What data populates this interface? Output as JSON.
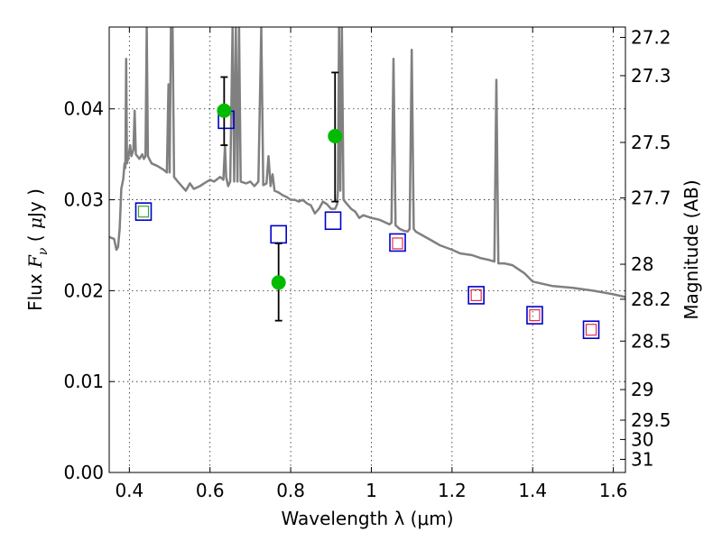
{
  "chart_data": {
    "type": "scatter",
    "xlabel": "Wavelength  λ (μm)",
    "ylabel_parts": [
      "Flux  ",
      "F",
      "ν",
      "  (  ",
      "μ",
      "Jy  )"
    ],
    "y2label": "Magnitude (AB)",
    "xlim": [
      0.35,
      1.63
    ],
    "ylim": [
      0.0,
      0.049
    ],
    "grid": true,
    "x_ticks": [
      {
        "value": 0.4,
        "label": "0.4"
      },
      {
        "value": 0.6,
        "label": "0.6"
      },
      {
        "value": 0.8,
        "label": "0.8"
      },
      {
        "value": 1.0,
        "label": "1"
      },
      {
        "value": 1.2,
        "label": "1.2"
      },
      {
        "value": 1.4,
        "label": "1.4"
      },
      {
        "value": 1.6,
        "label": "1.6"
      }
    ],
    "y_ticks": [
      {
        "value": 0.0,
        "label": "0.00"
      },
      {
        "value": 0.01,
        "label": "0.01"
      },
      {
        "value": 0.02,
        "label": "0.02"
      },
      {
        "value": 0.03,
        "label": "0.03"
      },
      {
        "value": 0.04,
        "label": "0.04"
      }
    ],
    "magnitude_ticks": [
      {
        "mag": 27.2,
        "label": "27.2"
      },
      {
        "mag": 27.3,
        "label": "27.3"
      },
      {
        "mag": 27.5,
        "label": "27.5"
      },
      {
        "mag": 27.7,
        "label": "27.7"
      },
      {
        "mag": 28.0,
        "label": "28"
      },
      {
        "mag": 28.2,
        "label": "28.2"
      },
      {
        "mag": 28.5,
        "label": "28.5"
      },
      {
        "mag": 29.0,
        "label": "29"
      },
      {
        "mag": 29.5,
        "label": "29.5"
      },
      {
        "mag": 30.0,
        "label": "30"
      },
      {
        "mag": 31.0,
        "label": "31"
      }
    ],
    "series": [
      {
        "kind": "line",
        "color": "#808080",
        "points": [
          [
            0.35,
            0.0259
          ],
          [
            0.362,
            0.0257
          ],
          [
            0.368,
            0.0245
          ],
          [
            0.372,
            0.0248
          ],
          [
            0.376,
            0.0268
          ],
          [
            0.38,
            0.0312
          ],
          [
            0.385,
            0.0323
          ],
          [
            0.388,
            0.034
          ],
          [
            0.39,
            0.0335
          ],
          [
            0.392,
            0.0455
          ],
          [
            0.394,
            0.034
          ],
          [
            0.398,
            0.0348
          ],
          [
            0.402,
            0.036
          ],
          [
            0.405,
            0.0348
          ],
          [
            0.41,
            0.0355
          ],
          [
            0.413,
            0.0398
          ],
          [
            0.416,
            0.035
          ],
          [
            0.425,
            0.0345
          ],
          [
            0.432,
            0.035
          ],
          [
            0.436,
            0.0345
          ],
          [
            0.44,
            0.0348
          ],
          [
            0.443,
            0.049
          ],
          [
            0.446,
            0.0348
          ],
          [
            0.455,
            0.034
          ],
          [
            0.47,
            0.0337
          ],
          [
            0.485,
            0.0333
          ],
          [
            0.493,
            0.033
          ],
          [
            0.497,
            0.0427
          ],
          [
            0.5,
            0.033
          ],
          [
            0.503,
            0.049
          ],
          [
            0.507,
            0.049
          ],
          [
            0.511,
            0.0325
          ],
          [
            0.52,
            0.032
          ],
          [
            0.53,
            0.0315
          ],
          [
            0.54,
            0.031
          ],
          [
            0.55,
            0.0318
          ],
          [
            0.56,
            0.0312
          ],
          [
            0.575,
            0.0315
          ],
          [
            0.585,
            0.0318
          ],
          [
            0.6,
            0.0322
          ],
          [
            0.61,
            0.032
          ],
          [
            0.625,
            0.0325
          ],
          [
            0.633,
            0.0322
          ],
          [
            0.637,
            0.036
          ],
          [
            0.64,
            0.0325
          ],
          [
            0.645,
            0.0315
          ],
          [
            0.65,
            0.032
          ],
          [
            0.656,
            0.049
          ],
          [
            0.66,
            0.032
          ],
          [
            0.664,
            0.049
          ],
          [
            0.668,
            0.032
          ],
          [
            0.672,
            0.049
          ],
          [
            0.676,
            0.032
          ],
          [
            0.69,
            0.0318
          ],
          [
            0.7,
            0.032
          ],
          [
            0.71,
            0.0315
          ],
          [
            0.72,
            0.032
          ],
          [
            0.727,
            0.049
          ],
          [
            0.732,
            0.0316
          ],
          [
            0.74,
            0.0318
          ],
          [
            0.745,
            0.0348
          ],
          [
            0.75,
            0.0315
          ],
          [
            0.755,
            0.0328
          ],
          [
            0.76,
            0.031
          ],
          [
            0.77,
            0.0308
          ],
          [
            0.78,
            0.0305
          ],
          [
            0.79,
            0.0303
          ],
          [
            0.8,
            0.03
          ],
          [
            0.81,
            0.03
          ],
          [
            0.82,
            0.0298
          ],
          [
            0.83,
            0.03
          ],
          [
            0.84,
            0.0296
          ],
          [
            0.85,
            0.0294
          ],
          [
            0.86,
            0.0285
          ],
          [
            0.87,
            0.029
          ],
          [
            0.88,
            0.0298
          ],
          [
            0.89,
            0.0295
          ],
          [
            0.9,
            0.029
          ],
          [
            0.91,
            0.029
          ],
          [
            0.915,
            0.0295
          ],
          [
            0.917,
            0.031
          ],
          [
            0.92,
            0.049
          ],
          [
            0.923,
            0.031
          ],
          [
            0.927,
            0.049
          ],
          [
            0.931,
            0.03
          ],
          [
            0.94,
            0.0295
          ],
          [
            0.95,
            0.029
          ],
          [
            0.96,
            0.0287
          ],
          [
            0.97,
            0.028
          ],
          [
            0.98,
            0.0283
          ],
          [
            1.0,
            0.028
          ],
          [
            1.02,
            0.0278
          ],
          [
            1.035,
            0.0275
          ],
          [
            1.045,
            0.0273
          ],
          [
            1.05,
            0.0275
          ],
          [
            1.055,
            0.0455
          ],
          [
            1.06,
            0.0272
          ],
          [
            1.07,
            0.0268
          ],
          [
            1.08,
            0.0266
          ],
          [
            1.09,
            0.0265
          ],
          [
            1.095,
            0.0268
          ],
          [
            1.1,
            0.0465
          ],
          [
            1.105,
            0.0268
          ],
          [
            1.11,
            0.0265
          ],
          [
            1.13,
            0.026
          ],
          [
            1.15,
            0.0255
          ],
          [
            1.17,
            0.025
          ],
          [
            1.2,
            0.0245
          ],
          [
            1.22,
            0.0241
          ],
          [
            1.25,
            0.0239
          ],
          [
            1.27,
            0.0236
          ],
          [
            1.29,
            0.0234
          ],
          [
            1.305,
            0.0232
          ],
          [
            1.31,
            0.0432
          ],
          [
            1.315,
            0.023
          ],
          [
            1.33,
            0.023
          ],
          [
            1.35,
            0.0228
          ],
          [
            1.36,
            0.0225
          ],
          [
            1.38,
            0.0219
          ],
          [
            1.4,
            0.021
          ],
          [
            1.42,
            0.0208
          ],
          [
            1.45,
            0.0205
          ],
          [
            1.5,
            0.0203
          ],
          [
            1.55,
            0.02
          ],
          [
            1.6,
            0.0196
          ],
          [
            1.63,
            0.0193
          ]
        ]
      },
      {
        "kind": "open-square",
        "color": "#0000cc",
        "points": [
          [
            0.435,
            0.0287
          ],
          [
            0.64,
            0.0388
          ],
          [
            0.77,
            0.0262
          ],
          [
            0.905,
            0.0277
          ],
          [
            1.065,
            0.0253
          ],
          [
            1.26,
            0.0195
          ],
          [
            1.405,
            0.0173
          ],
          [
            1.545,
            0.0157
          ]
        ]
      },
      {
        "kind": "small-square",
        "color": "#33aa33",
        "points": [
          [
            0.435,
            0.0287
          ]
        ]
      },
      {
        "kind": "small-square",
        "color": "#e0304a",
        "points": [
          [
            1.065,
            0.0252
          ],
          [
            1.26,
            0.0195
          ],
          [
            1.405,
            0.0173
          ],
          [
            1.545,
            0.0157
          ]
        ]
      },
      {
        "kind": "filled-circle",
        "color": "#00bb00",
        "points": [
          [
            0.635,
            0.0398
          ],
          [
            0.77,
            0.0209
          ],
          [
            0.91,
            0.037
          ]
        ],
        "error_bars": [
          [
            0.036,
            0.0435
          ],
          [
            0.0167,
            0.0252
          ],
          [
            0.0298,
            0.044
          ]
        ]
      }
    ]
  }
}
